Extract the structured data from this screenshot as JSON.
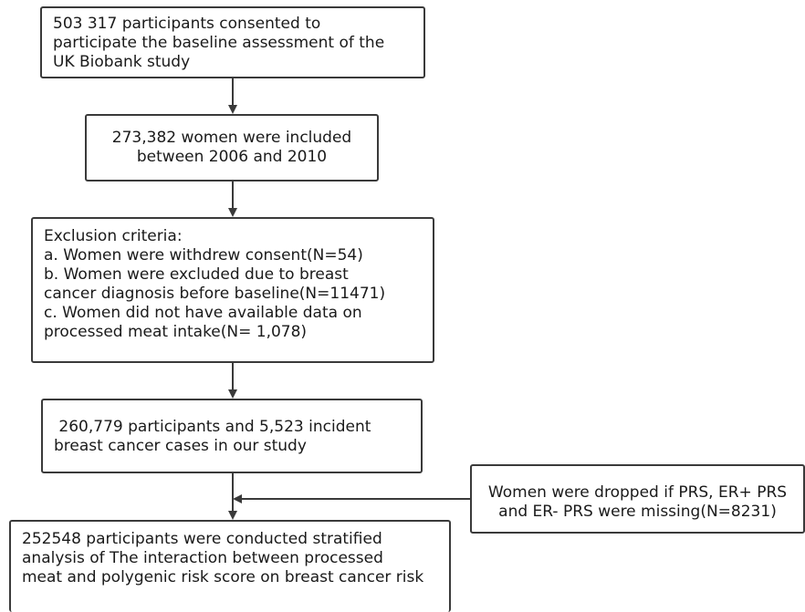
{
  "flow": {
    "box1": {
      "lines": [
        "503 317 participants consented to",
        "participate the baseline assessment of the",
        "UK Biobank study"
      ]
    },
    "box2": {
      "lines": [
        "273,382 women were included",
        "between 2006 and 2010"
      ]
    },
    "box3": {
      "lines": [
        "Exclusion criteria:",
        "a. Women were withdrew consent(N=54)",
        "b. Women were excluded due to breast",
        "cancer diagnosis before baseline(N=11471)",
        "c. Women did not have available data on",
        "processed meat intake(N= 1,078)"
      ]
    },
    "box4": {
      "lines": [
        " 260,779 participants and 5,523 incident",
        "breast cancer cases in our study"
      ]
    },
    "side_box": {
      "lines": [
        "Women were dropped if PRS, ER+ PRS",
        "and ER- PRS were missing(N=8231)"
      ]
    },
    "box6": {
      "lines": [
        "252548 participants were conducted stratified",
        "analysis of The interaction between processed",
        "meat and polygenic risk score on breast cancer risk"
      ]
    }
  }
}
